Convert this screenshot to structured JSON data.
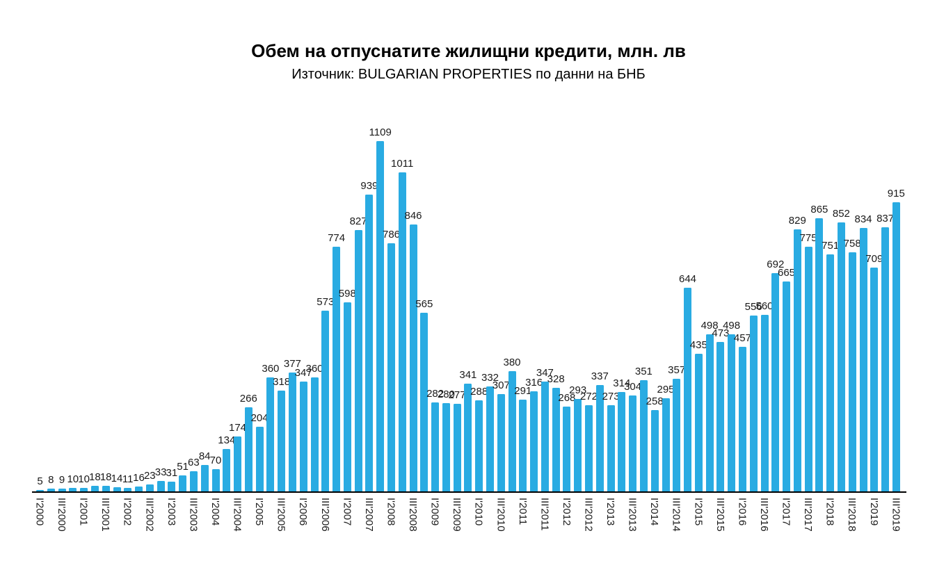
{
  "chart_data": {
    "type": "bar",
    "title": "Обем на отпуснатите жилищни кредити, млн. лв",
    "subtitle": "Източник: BULGARIAN PROPERTIES по данни на БНБ",
    "bar_color": "#29ABE2",
    "values": [
      5,
      8,
      9,
      10,
      10,
      18,
      18,
      14,
      11,
      16,
      23,
      33,
      31,
      51,
      63,
      84,
      70,
      134,
      174,
      266,
      204,
      360,
      318,
      377,
      347,
      360,
      573,
      774,
      598,
      827,
      939,
      1109,
      786,
      1011,
      846,
      565,
      282,
      280,
      277,
      341,
      288,
      332,
      307,
      380,
      291,
      316,
      347,
      328,
      268,
      293,
      272,
      337,
      273,
      314,
      304,
      351,
      258,
      295,
      357,
      644,
      435,
      498,
      473,
      498,
      457,
      556,
      560,
      692,
      665,
      829,
      775,
      865,
      751,
      852,
      758,
      834,
      709,
      837,
      915
    ],
    "tick_labels": [
      "I'2000",
      "III'2000",
      "I'2001",
      "III'2001",
      "I'2002",
      "III'2002",
      "I'2003",
      "III'2003",
      "I'2004",
      "III'2004",
      "I'2005",
      "III'2005",
      "I'2006",
      "III'2006",
      "I'2007",
      "III'2007",
      "I'2008",
      "III'2008",
      "I'2009",
      "III'2009",
      "I'2010",
      "III'2010",
      "I'2011",
      "III'2011",
      "I'2012",
      "III'2012",
      "I'2013",
      "III'2013",
      "I'2014",
      "III'2014",
      "I'2015",
      "III'2015",
      "I'2016",
      "III'2016",
      "I'2017",
      "III'2017",
      "I'2018",
      "III'2018",
      "I'2019",
      "III'2019"
    ],
    "tick_label_every": 2,
    "data_labels_shown": true,
    "xlabel": "",
    "ylabel": "",
    "ylim": [
      0,
      1109
    ],
    "grid": false,
    "legend": false
  }
}
